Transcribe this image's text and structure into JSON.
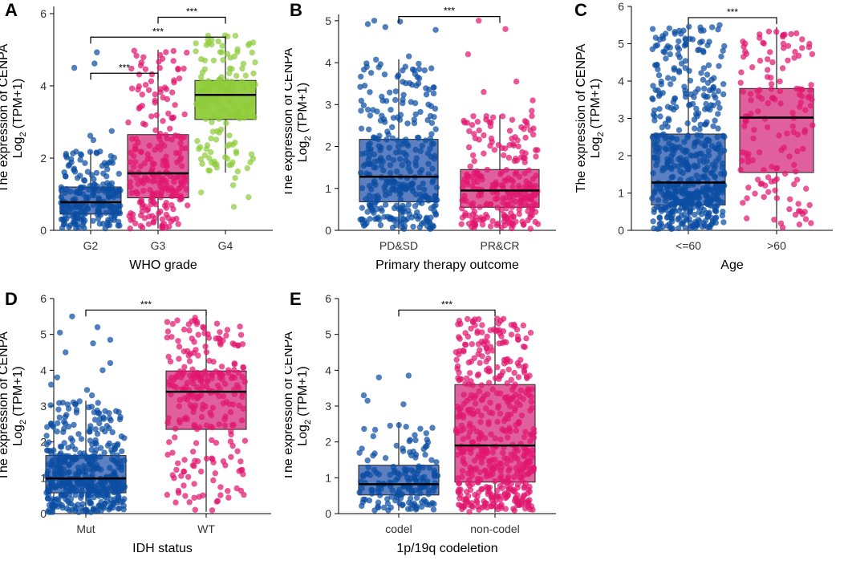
{
  "colors": {
    "blue_fill": "#5b7fc0",
    "blue_point": "#0b4ea2",
    "pink_fill": "#e0609e",
    "pink_point": "#e0166f",
    "green_fill": "#96cf43",
    "green_point": "#8dcc3a"
  },
  "chart_data": [
    {
      "panel": "A",
      "type": "boxplot",
      "ylabel_line1": "The expression of CENPA",
      "ylabel_line2_base": "Log",
      "ylabel_line2_sub": "2",
      "ylabel_line2_tail": "(TPM+1)",
      "xlabel": "WHO grade",
      "ylim": [
        0,
        6.2
      ],
      "yticks": [
        "0",
        "2",
        "4",
        "6"
      ],
      "ytick_values": [
        0,
        2,
        4,
        6
      ],
      "categories": [
        "G2",
        "G3",
        "G4"
      ],
      "fill_keys": [
        "blue_fill",
        "pink_fill",
        "green_fill"
      ],
      "point_keys": [
        "blue_point",
        "pink_point",
        "green_point"
      ],
      "n_points": [
        220,
        240,
        160
      ],
      "boxes": [
        {
          "min": 0.05,
          "q1": 0.45,
          "median": 0.78,
          "q3": 1.2,
          "max": 2.2,
          "outliers": [
            2.5,
            2.62,
            2.75,
            4.5,
            4.62,
            4.93
          ]
        },
        {
          "min": 0.05,
          "q1": 0.9,
          "median": 1.58,
          "q3": 2.65,
          "max": 5.0,
          "outliers": []
        },
        {
          "min": 1.6,
          "q1": 3.07,
          "median": 3.75,
          "q3": 4.15,
          "max": 5.4,
          "outliers": [
            0.65,
            0.92,
            1.05,
            1.25,
            1.45
          ]
        }
      ],
      "significance": [
        {
          "from": 0,
          "to": 1,
          "label": "***",
          "y": 4.35
        },
        {
          "from": 0,
          "to": 2,
          "label": "***",
          "y": 5.35
        },
        {
          "from": 1,
          "to": 2,
          "label": "***",
          "y": 5.9
        }
      ]
    },
    {
      "panel": "B",
      "type": "boxplot",
      "ylabel_line1": "The expression of CENPA",
      "ylabel_line2_base": "Log",
      "ylabel_line2_sub": "2",
      "ylabel_line2_tail": "(TPM+1)",
      "xlabel": "Primary therapy outcome",
      "ylim": [
        0,
        5.15
      ],
      "yticks": [
        "0",
        "1",
        "2",
        "3",
        "4",
        "5"
      ],
      "ytick_values": [
        0,
        1,
        2,
        3,
        4,
        5
      ],
      "categories": [
        "PD&SD",
        "PR&CR"
      ],
      "fill_keys": [
        "blue_fill",
        "pink_fill"
      ],
      "point_keys": [
        "blue_point",
        "pink_point"
      ],
      "n_points": [
        330,
        260
      ],
      "boxes": [
        {
          "min": 0.03,
          "q1": 0.68,
          "median": 1.28,
          "q3": 2.17,
          "max": 4.08,
          "outliers": [
            4.15,
            4.78,
            4.85,
            4.92,
            4.98,
            5.0
          ]
        },
        {
          "min": 0.03,
          "q1": 0.55,
          "median": 0.95,
          "q3": 1.45,
          "max": 2.75,
          "outliers": [
            2.85,
            3.1,
            3.3,
            3.55,
            4.2,
            4.8,
            5.0
          ]
        }
      ],
      "significance": [
        {
          "from": 0,
          "to": 1,
          "label": "***",
          "y": 5.1
        }
      ]
    },
    {
      "panel": "C",
      "type": "boxplot",
      "ylabel_line1": "The expression of CENPA",
      "ylabel_line2_base": "Log",
      "ylabel_line2_sub": "2",
      "ylabel_line2_tail": "(TPM+1)",
      "xlabel": "Age",
      "ylim": [
        0,
        6.0
      ],
      "yticks": [
        "0",
        "1",
        "2",
        "3",
        "4",
        "5",
        "6"
      ],
      "ytick_values": [
        0,
        1,
        2,
        3,
        4,
        5,
        6
      ],
      "categories": [
        "<=60",
        ">60"
      ],
      "fill_keys": [
        "blue_fill",
        "pink_fill"
      ],
      "point_keys": [
        "blue_point",
        "pink_point"
      ],
      "n_points": [
        560,
        150
      ],
      "boxes": [
        {
          "min": 0.03,
          "q1": 0.68,
          "median": 1.28,
          "q3": 2.58,
          "max": 5.5,
          "outliers": []
        },
        {
          "min": 0.05,
          "q1": 1.55,
          "median": 3.02,
          "q3": 3.8,
          "max": 5.45,
          "outliers": []
        }
      ],
      "significance": [
        {
          "from": 0,
          "to": 1,
          "label": "***",
          "y": 5.7
        }
      ]
    },
    {
      "panel": "D",
      "type": "boxplot",
      "ylabel_line1": "The expression of CENPA",
      "ylabel_line2_base": "Log",
      "ylabel_line2_sub": "2",
      "ylabel_line2_tail": "(TPM+1)",
      "xlabel": "IDH status",
      "ylim": [
        0,
        6.0
      ],
      "yticks": [
        "0",
        "1",
        "2",
        "3",
        "4",
        "5",
        "6"
      ],
      "ytick_values": [
        0,
        1,
        2,
        3,
        4,
        5,
        6
      ],
      "categories": [
        "Mut",
        "WT"
      ],
      "fill_keys": [
        "blue_fill",
        "pink_fill"
      ],
      "point_keys": [
        "blue_point",
        "pink_point"
      ],
      "n_points": [
        450,
        260
      ],
      "boxes": [
        {
          "min": 0.03,
          "q1": 0.58,
          "median": 0.98,
          "q3": 1.62,
          "max": 3.15,
          "outliers": [
            3.3,
            3.45,
            3.6,
            3.8,
            4.0,
            4.2,
            4.5,
            4.75,
            4.85,
            5.05,
            5.2,
            5.5
          ]
        },
        {
          "min": 0.05,
          "q1": 2.35,
          "median": 3.4,
          "q3": 3.98,
          "max": 5.5,
          "outliers": []
        }
      ],
      "significance": [
        {
          "from": 0,
          "to": 1,
          "label": "***",
          "y": 5.68
        }
      ]
    },
    {
      "panel": "E",
      "type": "boxplot",
      "ylabel_line1": "The expression of CENPA",
      "ylabel_line2_base": "Log",
      "ylabel_line2_sub": "2",
      "ylabel_line2_tail": "(TPM+1)",
      "xlabel": "1p/19q codeletion",
      "ylim": [
        0,
        6.0
      ],
      "yticks": [
        "0",
        "1",
        "2",
        "3",
        "4",
        "5",
        "6"
      ],
      "ytick_values": [
        0,
        1,
        2,
        3,
        4,
        5,
        6
      ],
      "categories": [
        "codel",
        "non-codel"
      ],
      "fill_keys": [
        "blue_fill",
        "pink_fill"
      ],
      "point_keys": [
        "blue_point",
        "pink_point"
      ],
      "n_points": [
        170,
        510
      ],
      "boxes": [
        {
          "min": 0.08,
          "q1": 0.52,
          "median": 0.82,
          "q3": 1.35,
          "max": 2.55,
          "outliers": [
            3.05,
            3.15,
            3.3,
            3.8,
            3.85
          ]
        },
        {
          "min": 0.03,
          "q1": 0.88,
          "median": 1.9,
          "q3": 3.6,
          "max": 5.45,
          "outliers": []
        }
      ],
      "significance": [
        {
          "from": 0,
          "to": 1,
          "label": "***",
          "y": 5.68
        }
      ]
    }
  ]
}
